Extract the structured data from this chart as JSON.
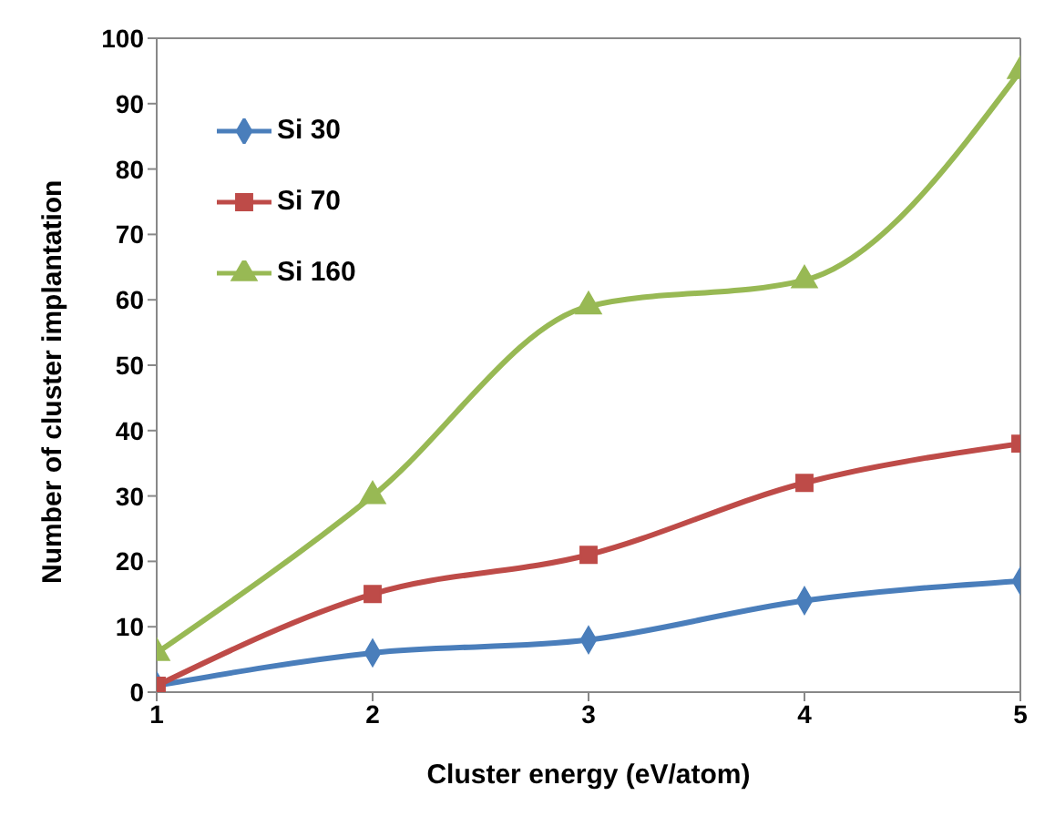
{
  "chart_data": {
    "type": "line",
    "xlabel": "Cluster energy (eV/atom)",
    "ylabel": "Number of cluster implantation",
    "x": [
      1,
      2,
      3,
      4,
      5
    ],
    "xlim": [
      1,
      5
    ],
    "xticks": [
      1,
      2,
      3,
      4,
      5
    ],
    "ylim": [
      0,
      100
    ],
    "yticks": [
      0,
      10,
      20,
      30,
      40,
      50,
      60,
      70,
      80,
      90,
      100
    ],
    "grid": false,
    "legend": "top left",
    "series": [
      {
        "name": "Si 30",
        "color": "#4a7ebb",
        "marker": "diamond",
        "values": [
          1,
          6,
          8,
          14,
          17
        ]
      },
      {
        "name": "Si 70",
        "color": "#be4b48",
        "marker": "square",
        "values": [
          1,
          15,
          21,
          32,
          38
        ]
      },
      {
        "name": "Si 160",
        "color": "#98b954",
        "marker": "triangle",
        "values": [
          6,
          30,
          59,
          63,
          95
        ]
      }
    ]
  }
}
